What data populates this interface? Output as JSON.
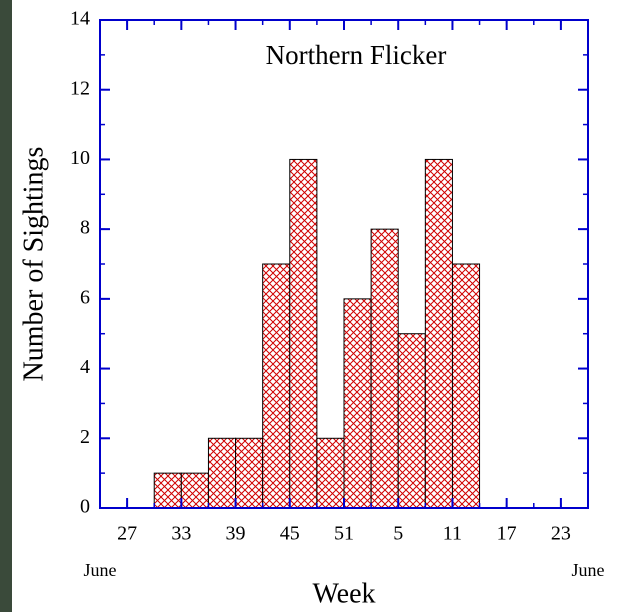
{
  "chart_data": {
    "type": "histogram",
    "title": "Northern Flicker",
    "x_label": "Week",
    "y_label": "Number of Sightings",
    "bins": [
      2,
      3,
      4,
      5,
      6,
      7,
      8,
      9,
      10,
      11,
      12,
      13,
      14
    ],
    "values": [
      1,
      1,
      2,
      2,
      7,
      10,
      2,
      6,
      8,
      5,
      10,
      7
    ],
    "color": "#d00000",
    "xlim": [
      0,
      18
    ],
    "xticks": [
      {
        "value": 1,
        "label": "27"
      },
      {
        "value": 3,
        "label": "33"
      },
      {
        "value": 5,
        "label": "39"
      },
      {
        "value": 7,
        "label": "45"
      },
      {
        "value": 9,
        "label": "51"
      },
      {
        "value": 11,
        "label": "5"
      },
      {
        "value": 13,
        "label": "11"
      },
      {
        "value": 15,
        "label": "17"
      },
      {
        "value": 17,
        "label": "23"
      }
    ],
    "ylim": [
      0,
      14
    ],
    "yticks": [
      0,
      2,
      4,
      6,
      8,
      10,
      12,
      14
    ],
    "annotations": [
      "June",
      "June"
    ]
  }
}
